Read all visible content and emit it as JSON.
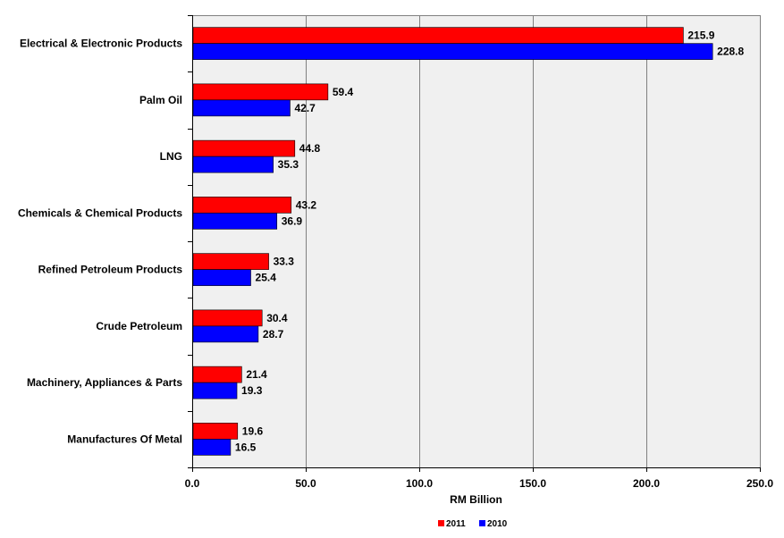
{
  "colors": {
    "series_2011": "#ff0000",
    "series_2010": "#0000ff",
    "plot_background": "#f0f0f0",
    "gridline": "#808080"
  },
  "chart_data": {
    "type": "bar",
    "orientation": "horizontal",
    "categories": [
      "Electrical & Electronic Products",
      "Palm Oil",
      "LNG",
      "Chemicals & Chemical Products",
      "Refined Petroleum Products",
      "Crude Petroleum",
      "Machinery, Appliances & Parts",
      "Manufactures Of Metal"
    ],
    "series": [
      {
        "name": "2011",
        "color": "#ff0000",
        "values": [
          215.9,
          59.4,
          44.8,
          43.2,
          33.3,
          30.4,
          21.4,
          19.6
        ],
        "labels": [
          "215.9",
          "59.4",
          "44.8",
          "43.2",
          "33.3",
          "30.4",
          "21.4",
          "19.6"
        ]
      },
      {
        "name": "2010",
        "color": "#0000ff",
        "values": [
          228.8,
          42.7,
          35.3,
          36.9,
          25.4,
          28.7,
          19.3,
          16.5
        ],
        "labels": [
          "228.8",
          "42.7",
          "35.3",
          "36.9",
          "25.4",
          "28.7",
          "19.3",
          "16.5"
        ]
      }
    ],
    "xlabel": "RM Billion",
    "ylabel": "",
    "xlim": [
      0,
      250
    ],
    "xticks": [
      0,
      50,
      100,
      150,
      200,
      250
    ],
    "xtick_labels": [
      "0.0",
      "50.0",
      "100.0",
      "150.0",
      "200.0",
      "250.0"
    ],
    "grid": true,
    "legend": "bottom-center",
    "data_labels": true
  }
}
